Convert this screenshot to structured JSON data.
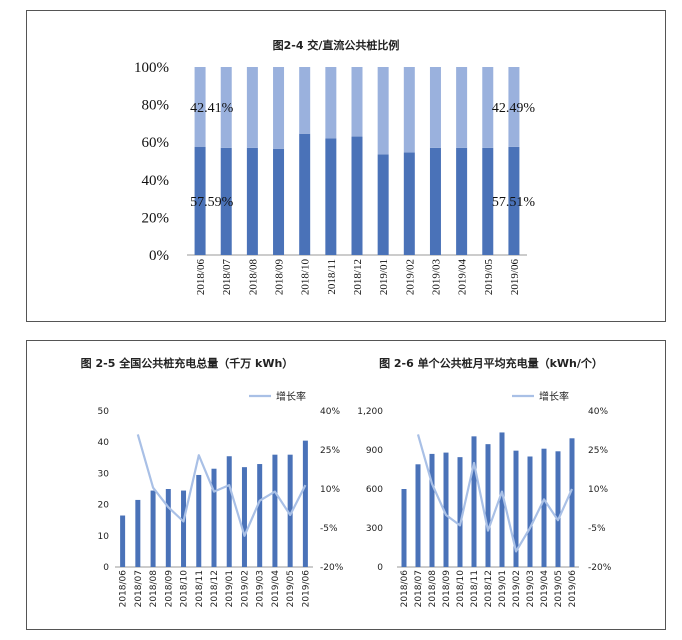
{
  "chart_data": [
    {
      "type": "bar",
      "stacked": true,
      "title": "图2-4 交/直流公共桩比例",
      "categories": [
        "2018/06",
        "2018/07",
        "2018/08",
        "2018/09",
        "2018/10",
        "2018/11",
        "2018/12",
        "2019/01",
        "2019/02",
        "2019/03",
        "2019/04",
        "2019/05",
        "2019/06"
      ],
      "series": [
        {
          "values": [
            57.59,
            57,
            57,
            56.5,
            64.5,
            62,
            63,
            53.5,
            54.5,
            57,
            57,
            57,
            57.51
          ],
          "color": "#4a72b8"
        },
        {
          "values": [
            42.41,
            43,
            43,
            43.5,
            35.5,
            38,
            37,
            46.5,
            45.5,
            43,
            43,
            43,
            42.49
          ],
          "color": "#9ab1dd"
        }
      ],
      "ylim": [
        0,
        100
      ],
      "yticks": [
        "0%",
        "20%",
        "40%",
        "60%",
        "80%",
        "100%"
      ],
      "annotations": [
        {
          "text": "42.41%",
          "index": 0,
          "series": 1
        },
        {
          "text": "57.59%",
          "index": 0,
          "series": 0
        },
        {
          "text": "42.49%",
          "index": 12,
          "series": 1
        },
        {
          "text": "57.51%",
          "index": 12,
          "series": 0
        }
      ],
      "grid": false
    },
    {
      "type": "bar",
      "title": "图 2-5 全国公共桩充电总量（千万 kWh）",
      "categories": [
        "2018/06",
        "2018/07",
        "2018/08",
        "2018/09",
        "2018/10",
        "2018/11",
        "2018/12",
        "2019/01",
        "2019/02",
        "2019/03",
        "2019/04",
        "2019/05",
        "2019/06"
      ],
      "values": [
        16.5,
        21.5,
        24.5,
        25,
        24.5,
        29.5,
        31.5,
        35.5,
        32,
        33,
        36,
        36,
        40.5
      ],
      "ylim": [
        0,
        50
      ],
      "yticks": [
        "0",
        "10",
        "20",
        "30",
        "40",
        "50"
      ],
      "line_series": {
        "name": "增长率",
        "values": [
          null,
          31,
          10.5,
          3,
          -2.5,
          23,
          9,
          11.5,
          -8,
          5.5,
          9,
          0,
          11.5
        ]
      },
      "y2lim": [
        -20,
        40
      ],
      "y2ticks": [
        "-20%",
        "-5%",
        "10%",
        "25%",
        "40%"
      ],
      "legend": "top",
      "bar_color": "#4a72b8",
      "line_color": "#a9c0e6"
    },
    {
      "type": "bar",
      "title": "图 2-6 单个公共桩月平均充电量（kWh/个）",
      "categories": [
        "2018/06",
        "2018/07",
        "2018/08",
        "2018/09",
        "2018/10",
        "2018/11",
        "2018/12",
        "2019/01",
        "2019/02",
        "2019/03",
        "2019/04",
        "2019/05",
        "2019/06"
      ],
      "values": [
        600,
        790,
        870,
        880,
        845,
        1005,
        945,
        1035,
        895,
        850,
        910,
        890,
        990
      ],
      "ylim": [
        0,
        1200
      ],
      "yticks": [
        "0",
        "300",
        "600",
        "900",
        "1,200"
      ],
      "line_series": {
        "name": "增长率",
        "values": [
          null,
          31,
          12,
          0,
          -4,
          20,
          -6,
          9,
          -14,
          -5,
          6,
          -2,
          10
        ]
      },
      "y2lim": [
        -20,
        40
      ],
      "y2ticks": [
        "-20%",
        "-5%",
        "10%",
        "25%",
        "40%"
      ],
      "legend": "top",
      "bar_color": "#4a72b8",
      "line_color": "#a9c0e6"
    }
  ]
}
